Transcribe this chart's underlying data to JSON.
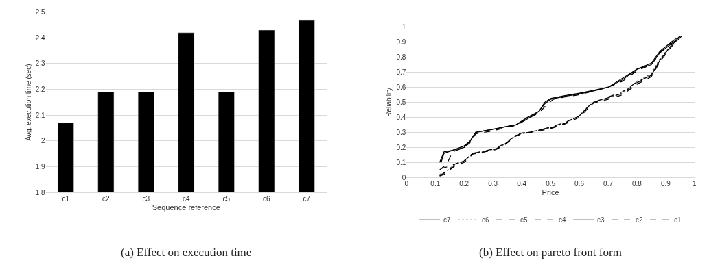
{
  "chart_data": [
    {
      "type": "bar",
      "title": "(a) Effect on execution time",
      "xlabel": "Sequence reference",
      "ylabel": "Avg. execution time (sec)",
      "categories": [
        "c1",
        "c2",
        "c3",
        "c4",
        "c5",
        "c6",
        "c7"
      ],
      "values": [
        2.07,
        2.19,
        2.19,
        2.42,
        2.19,
        2.43,
        2.47
      ],
      "color": "#000000",
      "ylim": [
        1.8,
        2.5
      ],
      "yticks": [
        1.8,
        1.9,
        2,
        2.1,
        2.2,
        2.3,
        2.4,
        2.5
      ],
      "grid": "y"
    },
    {
      "type": "line",
      "title": "(b) Effect on pareto front form",
      "xlabel": "Price",
      "ylabel": "Reliability",
      "xlim": [
        0,
        1
      ],
      "ylim": [
        0,
        1
      ],
      "xticks": [
        0,
        0.1,
        0.2,
        0.3,
        0.4,
        0.5,
        0.6,
        0.7,
        0.8,
        0.9,
        1
      ],
      "yticks": [
        0,
        0.1,
        0.2,
        0.3,
        0.4,
        0.5,
        0.6,
        0.7,
        0.8,
        0.9,
        1
      ],
      "grid": "y",
      "legend": "bottom",
      "series": [
        {
          "name": "c7",
          "color": "#000000",
          "line_style": "solid",
          "x": [
            0.115,
            0.13,
            0.16,
            0.2,
            0.22,
            0.24,
            0.3,
            0.35,
            0.38,
            0.42,
            0.46,
            0.48,
            0.5,
            0.55,
            0.6,
            0.65,
            0.7,
            0.75,
            0.8,
            0.85,
            0.88,
            0.92,
            0.94
          ],
          "values": [
            0.1,
            0.17,
            0.18,
            0.21,
            0.24,
            0.3,
            0.32,
            0.34,
            0.35,
            0.4,
            0.44,
            0.5,
            0.525,
            0.545,
            0.56,
            0.58,
            0.6,
            0.65,
            0.72,
            0.76,
            0.84,
            0.9,
            0.93
          ]
        },
        {
          "name": "c6",
          "color": "#555555",
          "line_style": "dotted",
          "x": [
            0.115,
            0.13,
            0.17,
            0.2,
            0.23,
            0.27,
            0.31,
            0.34,
            0.38,
            0.4,
            0.45,
            0.5,
            0.55,
            0.6,
            0.63,
            0.65,
            0.7,
            0.75,
            0.8,
            0.85,
            0.88,
            0.92,
            0.95
          ],
          "values": [
            0.02,
            0.03,
            0.09,
            0.11,
            0.16,
            0.175,
            0.19,
            0.22,
            0.28,
            0.29,
            0.31,
            0.33,
            0.36,
            0.41,
            0.47,
            0.5,
            0.53,
            0.56,
            0.64,
            0.69,
            0.79,
            0.88,
            0.94
          ]
        },
        {
          "name": "c5",
          "color": "#000000",
          "line_style": "dashed",
          "x": [
            0.115,
            0.14,
            0.16,
            0.2,
            0.22,
            0.24,
            0.3,
            0.35,
            0.38,
            0.42,
            0.46,
            0.49,
            0.51,
            0.55,
            0.6,
            0.65,
            0.7,
            0.75,
            0.8,
            0.85,
            0.88,
            0.92,
            0.95
          ],
          "values": [
            0.05,
            0.09,
            0.17,
            0.2,
            0.23,
            0.29,
            0.31,
            0.335,
            0.345,
            0.39,
            0.43,
            0.49,
            0.52,
            0.535,
            0.55,
            0.575,
            0.6,
            0.64,
            0.71,
            0.75,
            0.83,
            0.9,
            0.94
          ]
        },
        {
          "name": "c4",
          "color": "#000000",
          "line_style": "dashed",
          "x": [
            0.115,
            0.13,
            0.17,
            0.2,
            0.23,
            0.27,
            0.31,
            0.34,
            0.38,
            0.4,
            0.45,
            0.5,
            0.55,
            0.6,
            0.63,
            0.65,
            0.7,
            0.75,
            0.8,
            0.85,
            0.88,
            0.92,
            0.96
          ],
          "values": [
            0.01,
            0.03,
            0.08,
            0.1,
            0.155,
            0.17,
            0.185,
            0.215,
            0.275,
            0.29,
            0.305,
            0.325,
            0.355,
            0.4,
            0.46,
            0.495,
            0.52,
            0.55,
            0.62,
            0.67,
            0.77,
            0.87,
            0.95
          ]
        },
        {
          "name": "c3",
          "color": "#000000",
          "line_style": "solid",
          "x": [
            0.12,
            0.13,
            0.16,
            0.2,
            0.22,
            0.24,
            0.3,
            0.35,
            0.38,
            0.42,
            0.46,
            0.48,
            0.5,
            0.55,
            0.6,
            0.65,
            0.7,
            0.75,
            0.8,
            0.85,
            0.88,
            0.92,
            0.94
          ],
          "values": [
            0.1,
            0.16,
            0.18,
            0.2,
            0.24,
            0.3,
            0.32,
            0.34,
            0.35,
            0.39,
            0.44,
            0.49,
            0.52,
            0.54,
            0.555,
            0.575,
            0.6,
            0.66,
            0.72,
            0.75,
            0.83,
            0.89,
            0.92
          ]
        },
        {
          "name": "c2",
          "color": "#000000",
          "line_style": "dashed",
          "x": [
            0.12,
            0.14,
            0.17,
            0.2,
            0.23,
            0.27,
            0.31,
            0.34,
            0.38,
            0.4,
            0.45,
            0.5,
            0.55,
            0.6,
            0.63,
            0.65,
            0.7,
            0.75,
            0.8,
            0.85,
            0.88,
            0.92,
            0.95
          ],
          "values": [
            0.06,
            0.07,
            0.09,
            0.11,
            0.16,
            0.175,
            0.195,
            0.225,
            0.28,
            0.295,
            0.31,
            0.335,
            0.365,
            0.41,
            0.47,
            0.5,
            0.535,
            0.57,
            0.635,
            0.68,
            0.78,
            0.88,
            0.93
          ]
        },
        {
          "name": "c1",
          "color": "#000000",
          "line_style": "dashed",
          "x": [
            0.115,
            0.13,
            0.17,
            0.2,
            0.23,
            0.27,
            0.31,
            0.34,
            0.38,
            0.4,
            0.45,
            0.5,
            0.55,
            0.6,
            0.63,
            0.65,
            0.7,
            0.75,
            0.8,
            0.85,
            0.88,
            0.92,
            0.95
          ],
          "values": [
            0.01,
            0.02,
            0.08,
            0.11,
            0.16,
            0.17,
            0.19,
            0.22,
            0.28,
            0.29,
            0.31,
            0.33,
            0.36,
            0.41,
            0.47,
            0.5,
            0.53,
            0.56,
            0.63,
            0.68,
            0.78,
            0.88,
            0.94
          ]
        }
      ]
    }
  ]
}
